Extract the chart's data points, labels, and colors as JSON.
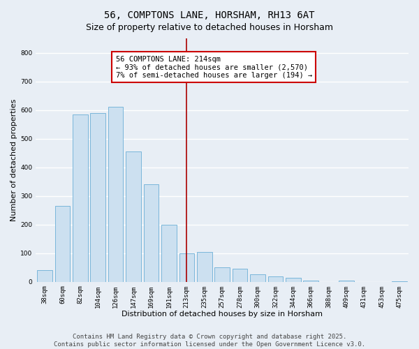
{
  "title": "56, COMPTONS LANE, HORSHAM, RH13 6AT",
  "subtitle": "Size of property relative to detached houses in Horsham",
  "xlabel": "Distribution of detached houses by size in Horsham",
  "ylabel": "Number of detached properties",
  "categories": [
    "38sqm",
    "60sqm",
    "82sqm",
    "104sqm",
    "126sqm",
    "147sqm",
    "169sqm",
    "191sqm",
    "213sqm",
    "235sqm",
    "257sqm",
    "278sqm",
    "300sqm",
    "322sqm",
    "344sqm",
    "366sqm",
    "388sqm",
    "409sqm",
    "431sqm",
    "453sqm",
    "475sqm"
  ],
  "values": [
    40,
    265,
    585,
    590,
    610,
    455,
    340,
    200,
    100,
    105,
    50,
    45,
    25,
    20,
    15,
    5,
    0,
    5,
    0,
    0,
    2
  ],
  "bar_color": "#cce0f0",
  "bar_edge_color": "#6aaed6",
  "highlight_index": 8,
  "annotation_line1": "56 COMPTONS LANE: 214sqm",
  "annotation_line2": "← 93% of detached houses are smaller (2,570)",
  "annotation_line3": "7% of semi-detached houses are larger (194) →",
  "annotation_box_color": "#ffffff",
  "annotation_box_edge_color": "#cc0000",
  "vline_color": "#aa0000",
  "ylim": [
    0,
    850
  ],
  "yticks": [
    0,
    100,
    200,
    300,
    400,
    500,
    600,
    700,
    800
  ],
  "background_color": "#e8eef5",
  "grid_color": "#ffffff",
  "footer_text": "Contains HM Land Registry data © Crown copyright and database right 2025.\nContains public sector information licensed under the Open Government Licence v3.0.",
  "title_fontsize": 10,
  "xlabel_fontsize": 8,
  "ylabel_fontsize": 8,
  "tick_fontsize": 6.5,
  "annotation_fontsize": 7.5,
  "footer_fontsize": 6.5
}
